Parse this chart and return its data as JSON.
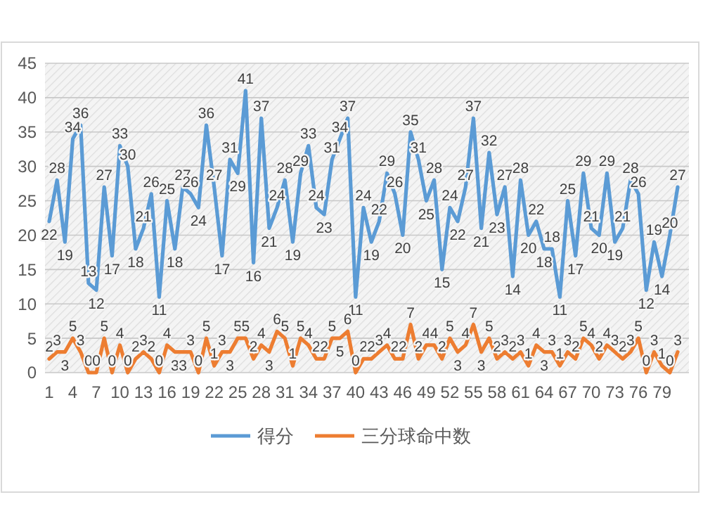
{
  "chart_data": {
    "type": "line",
    "categories": [
      "1",
      null,
      null,
      "4",
      null,
      null,
      "7",
      null,
      null,
      "10",
      null,
      null,
      "13",
      null,
      null,
      "16",
      null,
      null,
      "19",
      null,
      null,
      "22",
      null,
      null,
      "25",
      null,
      null,
      "28",
      null,
      null,
      "31",
      null,
      null,
      "34",
      null,
      null,
      "37",
      null,
      null,
      "40",
      null,
      null,
      "43",
      null,
      null,
      "46",
      null,
      null,
      "49",
      null,
      null,
      "52",
      null,
      null,
      "55",
      null,
      null,
      "58",
      null,
      null,
      "61",
      null,
      null,
      "64",
      null,
      null,
      "67",
      null,
      null,
      "70",
      null,
      null,
      "73",
      null,
      null,
      "76",
      null,
      null,
      "79",
      null,
      null
    ],
    "series": [
      {
        "name": "得分",
        "color": "#5b9bd5",
        "values": [
          22,
          28,
          19,
          34,
          36,
          13,
          12,
          27,
          17,
          33,
          30,
          18,
          21,
          26,
          11,
          25,
          18,
          27,
          26,
          24,
          36,
          27,
          17,
          31,
          29,
          41,
          16,
          37,
          21,
          24,
          28,
          19,
          29,
          33,
          24,
          23,
          31,
          34,
          37,
          11,
          24,
          19,
          22,
          29,
          26,
          20,
          35,
          31,
          25,
          28,
          15,
          24,
          22,
          27,
          37,
          21,
          32,
          23,
          27,
          14,
          28,
          20,
          22,
          18,
          18,
          11,
          25,
          17,
          29,
          21,
          20,
          29,
          19,
          21,
          28,
          26,
          12,
          19,
          14,
          20,
          27
        ]
      },
      {
        "name": "三分球命中数",
        "color": "#ed7d31",
        "values": [
          2,
          3,
          3,
          5,
          3,
          0,
          0,
          5,
          0,
          4,
          0,
          2,
          3,
          2,
          0,
          4,
          3,
          3,
          3,
          0,
          5,
          1,
          3,
          3,
          5,
          5,
          2,
          4,
          3,
          6,
          5,
          1,
          5,
          4,
          2,
          2,
          5,
          5,
          6,
          0,
          2,
          2,
          3,
          4,
          2,
          2,
          7,
          2,
          4,
          4,
          2,
          5,
          3,
          4,
          7,
          3,
          5,
          2,
          3,
          2,
          3,
          1,
          4,
          3,
          3,
          1,
          3,
          2,
          5,
          4,
          2,
          4,
          3,
          2,
          3,
          5,
          0,
          3,
          1,
          0,
          3
        ]
      }
    ],
    "ylim": [
      0,
      45
    ],
    "yticks": [
      0,
      5,
      10,
      15,
      20,
      25,
      30,
      35,
      40,
      45
    ],
    "grid": "y",
    "legend": "bottom",
    "data_labels": true,
    "marker": "none",
    "line_style": "solid"
  }
}
